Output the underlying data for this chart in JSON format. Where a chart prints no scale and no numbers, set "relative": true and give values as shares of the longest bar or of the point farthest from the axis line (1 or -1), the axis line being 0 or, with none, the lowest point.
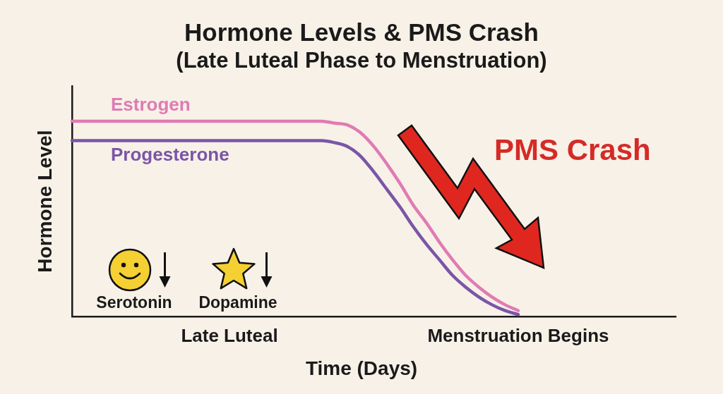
{
  "chart_data": {
    "type": "line",
    "title": "Hormone Levels & PMS Crash",
    "subtitle": "(Late Luteal Phase to Menstruation)",
    "xlabel": "Time (Days)",
    "ylabel": "Hormone Level",
    "relative": true,
    "categories": [
      null,
      null,
      null,
      null,
      null,
      null,
      null,
      null,
      null,
      null,
      null,
      null,
      "Late Luteal",
      null,
      null,
      null,
      null,
      null,
      null,
      null,
      null,
      null,
      null,
      null,
      null,
      null,
      null,
      null,
      null,
      null,
      null,
      null,
      null,
      null,
      "Menstruation Begins",
      null,
      null,
      null,
      null,
      null,
      null,
      null,
      null,
      null,
      null,
      null,
      null
    ],
    "series": [
      {
        "name": "Estrogen",
        "color": "#e07bb2",
        "values": [
          1.0,
          1.0,
          1.0,
          1.0,
          1.0,
          1.0,
          1.0,
          1.0,
          1.0,
          1.0,
          1.0,
          1.0,
          1.0,
          1.0,
          1.0,
          1.0,
          1.0,
          1.0,
          1.0,
          1.0,
          0.99,
          0.98,
          0.94,
          0.87,
          0.78,
          0.68,
          0.57,
          0.48,
          0.38,
          0.29,
          0.21,
          0.15,
          0.1,
          0.06,
          0.03,
          null,
          null,
          null,
          null,
          null,
          null,
          null,
          null,
          null,
          null,
          null,
          null
        ]
      },
      {
        "name": "Progesterone",
        "color": "#7a56a6",
        "values": [
          0.9,
          0.9,
          0.9,
          0.9,
          0.9,
          0.9,
          0.9,
          0.9,
          0.9,
          0.9,
          0.9,
          0.9,
          0.9,
          0.9,
          0.9,
          0.9,
          0.9,
          0.9,
          0.9,
          0.9,
          0.89,
          0.87,
          0.82,
          0.74,
          0.65,
          0.56,
          0.46,
          0.37,
          0.29,
          0.21,
          0.15,
          0.1,
          0.06,
          0.03,
          0.01,
          null,
          null,
          null,
          null,
          null,
          null,
          null,
          null,
          null,
          null,
          null,
          null
        ]
      }
    ],
    "annotations": [
      "PMS Crash",
      "Serotonin",
      "Dopamine"
    ],
    "marker": "none",
    "line_style": "solid",
    "grid": false
  }
}
